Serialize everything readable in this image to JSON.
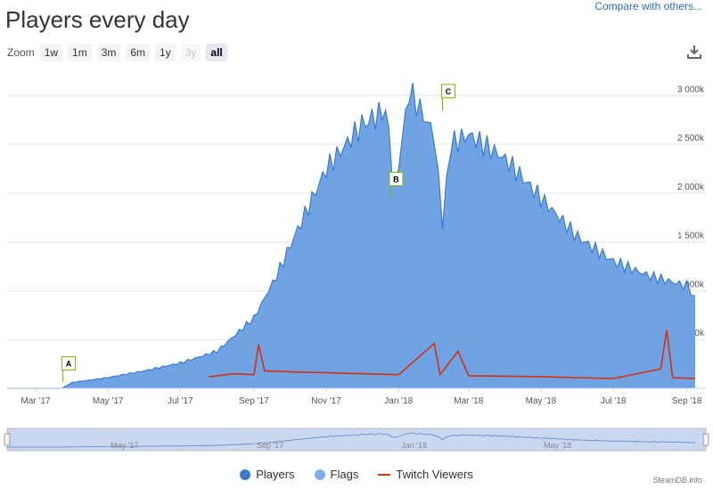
{
  "header": {
    "title": "Players every day",
    "compare_link": "Compare with others..."
  },
  "zoom": {
    "label": "Zoom",
    "buttons": [
      {
        "label": "1w",
        "state": "normal"
      },
      {
        "label": "1m",
        "state": "normal"
      },
      {
        "label": "3m",
        "state": "normal"
      },
      {
        "label": "6m",
        "state": "normal"
      },
      {
        "label": "1y",
        "state": "normal"
      },
      {
        "label": "3y",
        "state": "disabled"
      },
      {
        "label": "all",
        "state": "active"
      }
    ]
  },
  "icons": {
    "download": "download-icon"
  },
  "colors": {
    "players_line": "#3b7ad1",
    "players_fill": "#70a3e4",
    "twitch": "#d7300c",
    "grid": "#e6e6e6",
    "navigator_fill": "#c9d7ef",
    "navigator_line": "#6e95d6"
  },
  "chart_data": {
    "type": "area",
    "x_axis_labels": [
      "Mar '17",
      "May '17",
      "Jul '17",
      "Sep '17",
      "Nov '17",
      "Jan '18",
      "Mar '18",
      "May '18",
      "Jul '18",
      "Sep '18"
    ],
    "y_axis_labels": [
      "500k",
      "1 000k",
      "1 500k",
      "2 000k",
      "2 500k",
      "3 000k"
    ],
    "ylim": [
      0,
      3000000
    ],
    "grid": true,
    "legend_position": "bottom-center",
    "series": [
      {
        "name": "Players",
        "points": [
          [
            "2017-02-05",
            0
          ],
          [
            "2017-03-23",
            0
          ],
          [
            "2017-04-01",
            60000
          ],
          [
            "2017-05-01",
            110000
          ],
          [
            "2017-06-01",
            180000
          ],
          [
            "2017-07-01",
            260000
          ],
          [
            "2017-08-01",
            380000
          ],
          [
            "2017-09-01",
            720000
          ],
          [
            "2017-09-20",
            1150000
          ],
          [
            "2017-10-05",
            1550000
          ],
          [
            "2017-11-01",
            2250000
          ],
          [
            "2017-12-01",
            2700000
          ],
          [
            "2017-12-21",
            2850000
          ],
          [
            "2017-12-29",
            2050000
          ],
          [
            "2018-01-10",
            3050000
          ],
          [
            "2018-01-31",
            2600000
          ],
          [
            "2018-02-07",
            1700000
          ],
          [
            "2018-02-14",
            2500000
          ],
          [
            "2018-03-01",
            2600000
          ],
          [
            "2018-04-01",
            2350000
          ],
          [
            "2018-05-01",
            1950000
          ],
          [
            "2018-06-01",
            1550000
          ],
          [
            "2018-07-01",
            1300000
          ],
          [
            "2018-08-01",
            1150000
          ],
          [
            "2018-09-01",
            1050000
          ],
          [
            "2018-09-08",
            950000
          ]
        ]
      },
      {
        "name": "Twitch Viewers",
        "points": [
          [
            "2017-07-25",
            120000
          ],
          [
            "2017-08-15",
            150000
          ],
          [
            "2017-09-01",
            140000
          ],
          [
            "2017-09-05",
            450000
          ],
          [
            "2017-09-10",
            180000
          ],
          [
            "2017-10-01",
            170000
          ],
          [
            "2017-11-01",
            160000
          ],
          [
            "2017-12-01",
            150000
          ],
          [
            "2018-01-01",
            140000
          ],
          [
            "2018-01-31",
            460000
          ],
          [
            "2018-02-05",
            140000
          ],
          [
            "2018-02-20",
            380000
          ],
          [
            "2018-03-01",
            130000
          ],
          [
            "2018-05-01",
            120000
          ],
          [
            "2018-07-01",
            100000
          ],
          [
            "2018-08-10",
            200000
          ],
          [
            "2018-08-15",
            600000
          ],
          [
            "2018-08-20",
            110000
          ],
          [
            "2018-09-08",
            100000
          ]
        ]
      }
    ],
    "annotations": [
      {
        "label": "A",
        "date": "2017-03-24",
        "value": 60000
      },
      {
        "label": "B",
        "date": "2017-12-25",
        "value": 1950000
      },
      {
        "label": "C",
        "date": "2018-02-07",
        "value": 2850000
      }
    ],
    "navigator_labels": [
      "May '17",
      "Sep '17",
      "Jan '18",
      "May '18"
    ]
  },
  "legend": [
    {
      "label": "Players",
      "type": "dot"
    },
    {
      "label": "Flags",
      "type": "dot"
    },
    {
      "label": "Twitch Viewers",
      "type": "line"
    }
  ],
  "credit": "SteamDB.info"
}
